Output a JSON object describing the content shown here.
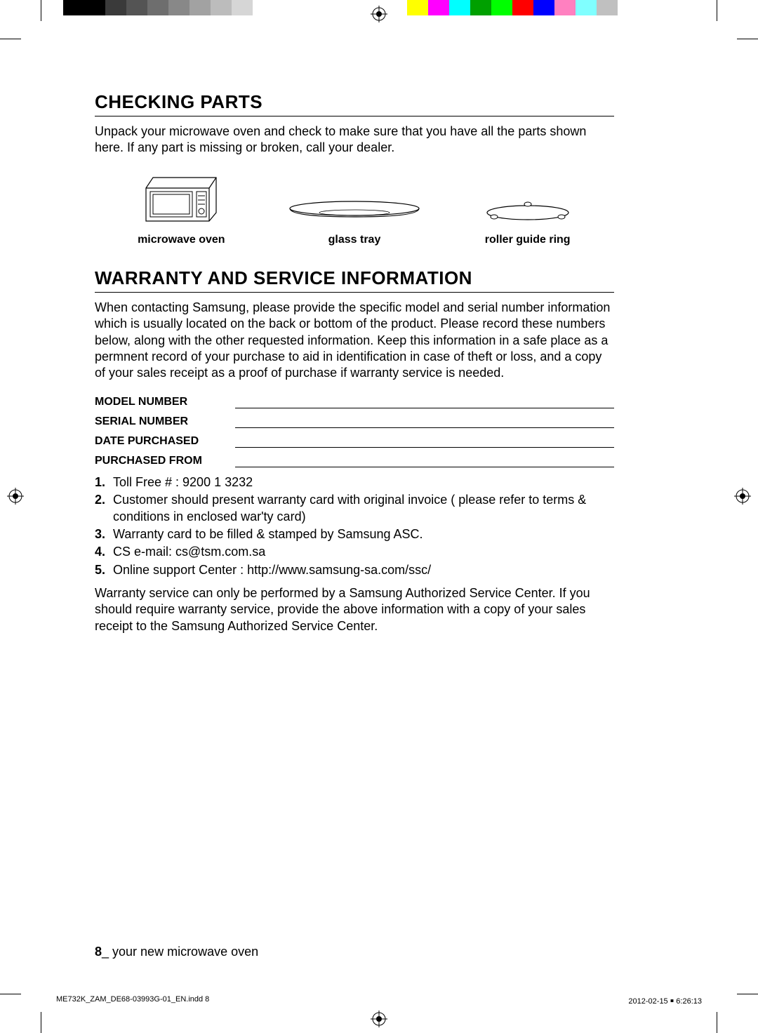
{
  "colorbar_left": [
    "#000000",
    "#000000",
    "#3a3a3a",
    "#545454",
    "#6e6e6e",
    "#888888",
    "#a2a2a2",
    "#bcbcbc",
    "#d6d6d6",
    "#ffffff"
  ],
  "colorbar_right": [
    "#ffff00",
    "#ff00ff",
    "#00ffff",
    "#00a000",
    "#00ff00",
    "#ff0000",
    "#0000ff",
    "#ff80c0",
    "#80ffff",
    "#c0c0c0"
  ],
  "section1": {
    "title": "CHECKING PARTS",
    "text": "Unpack your microwave oven and check to make sure that you have all the parts shown here. If any part is missing or broken, call your dealer.",
    "parts": [
      {
        "label": "microwave oven"
      },
      {
        "label": "glass tray"
      },
      {
        "label": "roller guide ring"
      }
    ]
  },
  "section2": {
    "title": "WARRANTY AND SERVICE INFORMATION",
    "text": "When contacting Samsung, please provide the specific model and serial number information which is usually located on the back or bottom of the product. Please record these numbers below, along with the other requested information. Keep this information in a safe place as a permnent record of your purchase to aid in identification in case of theft or loss, and a copy of your sales receipt as a proof of purchase if warranty service is needed.",
    "fields": [
      "MODEL NUMBER",
      "SERIAL NUMBER",
      "DATE PURCHASED",
      "PURCHASED FROM"
    ],
    "notes": [
      "Toll Free # : 9200 1 3232",
      "Customer should present warranty card with original invoice ( please refer to terms & conditions in enclosed war'ty card)",
      "Warranty card to be filled & stamped by Samsung ASC.",
      "CS e-mail: cs@tsm.com.sa",
      "Online support Center : http://www.samsung-sa.com/ssc/"
    ],
    "closing": "Warranty service can only be performed by a Samsung Authorized Service Center. If you should require warranty service, provide the above information with a copy of your sales receipt to the Samsung Authorized Service Center."
  },
  "footer": {
    "page_number": "8",
    "separator": "_",
    "label": " your new microwave oven"
  },
  "print_footer": {
    "left": "ME732K_ZAM_DE68-03993G-01_EN.indd   8",
    "right": "2012-02-15   ￭ 6:26:13"
  }
}
